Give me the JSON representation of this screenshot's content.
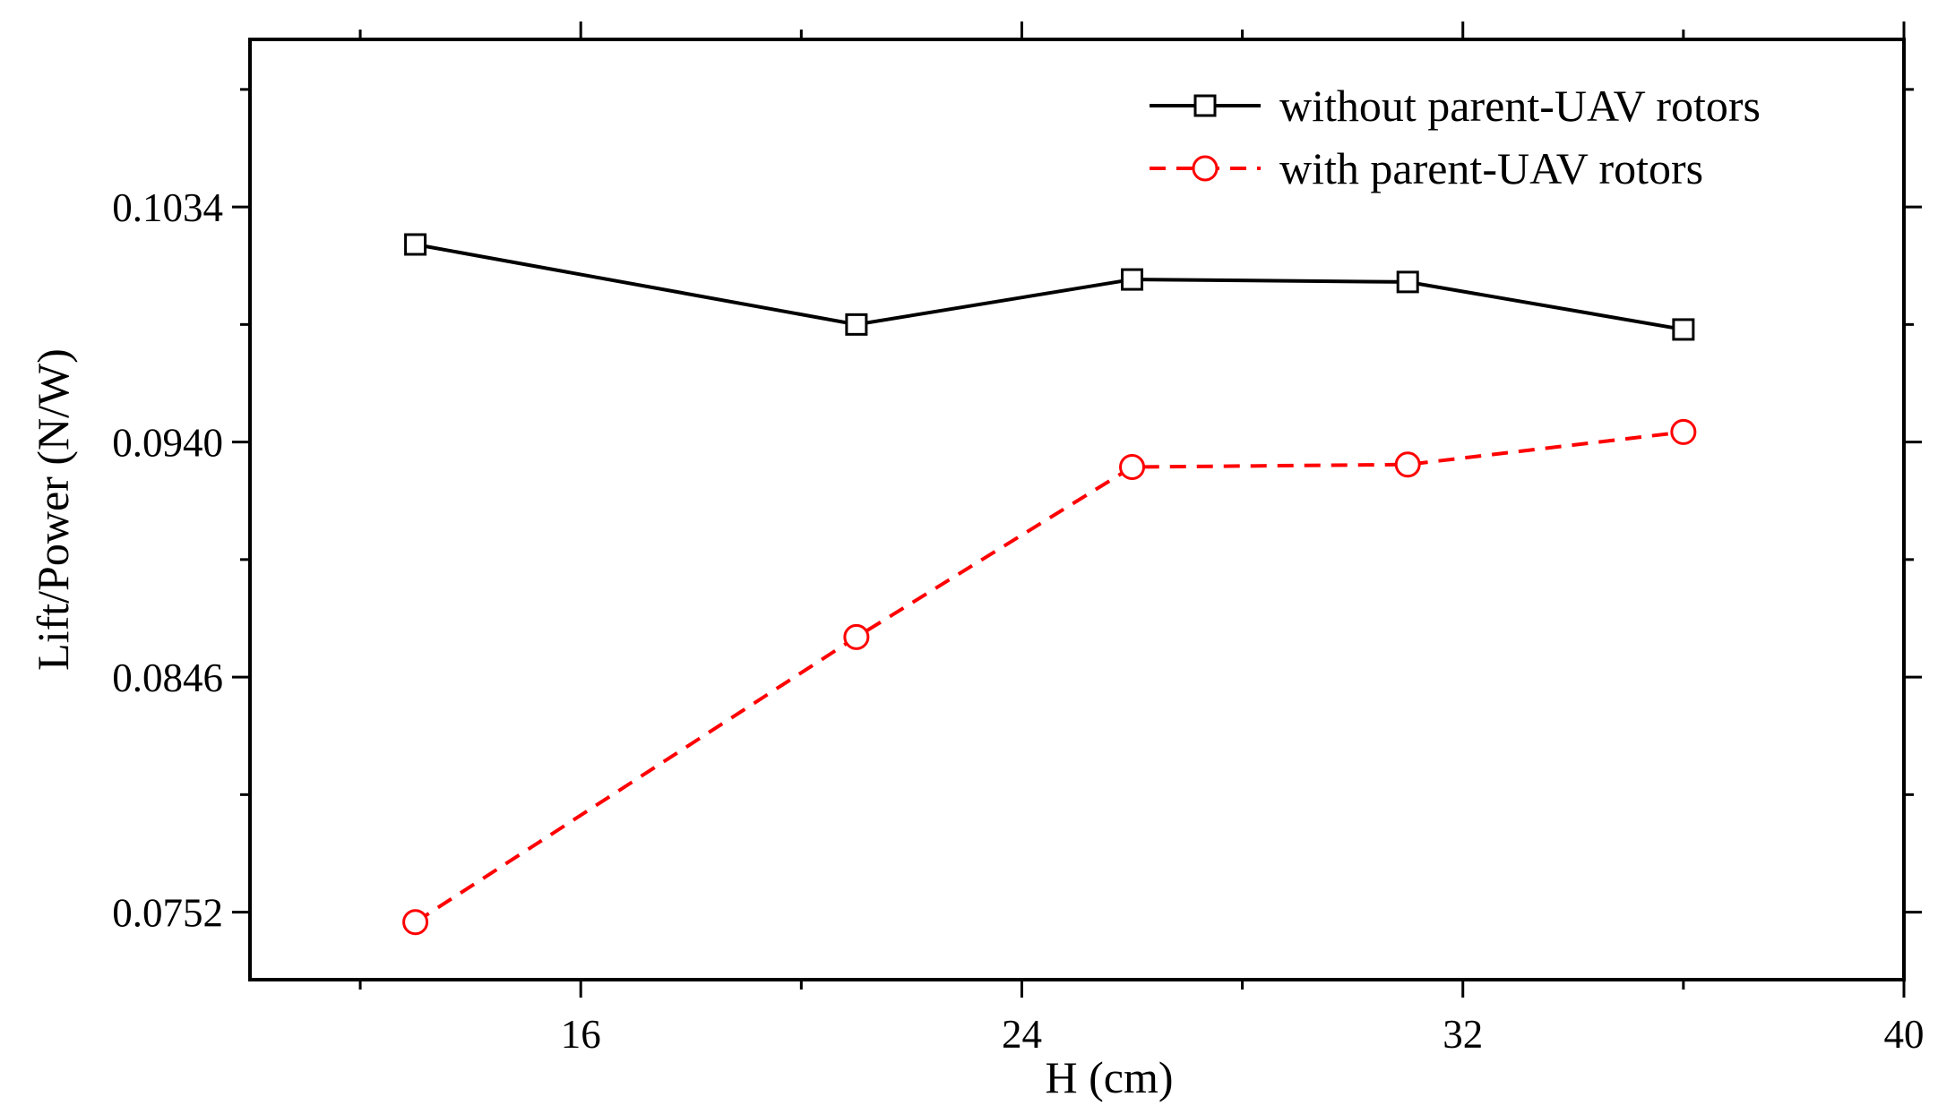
{
  "chart_data": {
    "type": "line",
    "title": "",
    "xlabel": "H (cm)",
    "ylabel": "Lift/Power (N/W)",
    "xlim": [
      10,
      40
    ],
    "ylim": [
      0.0725,
      0.1101
    ],
    "x_ticks": [
      16,
      24,
      32,
      40
    ],
    "x_tick_labels": [
      "16",
      "24",
      "32",
      "40"
    ],
    "x_minor_ticks": [
      12,
      20,
      28,
      36
    ],
    "y_ticks": [
      0.0752,
      0.0846,
      0.094,
      0.1034
    ],
    "y_tick_labels": [
      "0.0752",
      "0.0846",
      "0.0940",
      "0.1034"
    ],
    "y_minor_ticks": [
      0.0799,
      0.0893,
      0.0987,
      0.1081
    ],
    "grid": false,
    "legend_position": "top-right",
    "x": [
      13,
      21,
      26,
      31,
      36
    ],
    "series": [
      {
        "name": "without parent-UAV rotors",
        "values": [
          0.1019,
          0.0987,
          0.1005,
          0.1004,
          0.0985
        ],
        "color": "#000000",
        "line_style": "solid",
        "marker": "square"
      },
      {
        "name": "with parent-UAV rotors",
        "values": [
          0.0748,
          0.0862,
          0.093,
          0.0931,
          0.0944
        ],
        "color": "#ff0000",
        "line_style": "dashed",
        "marker": "circle"
      }
    ]
  }
}
